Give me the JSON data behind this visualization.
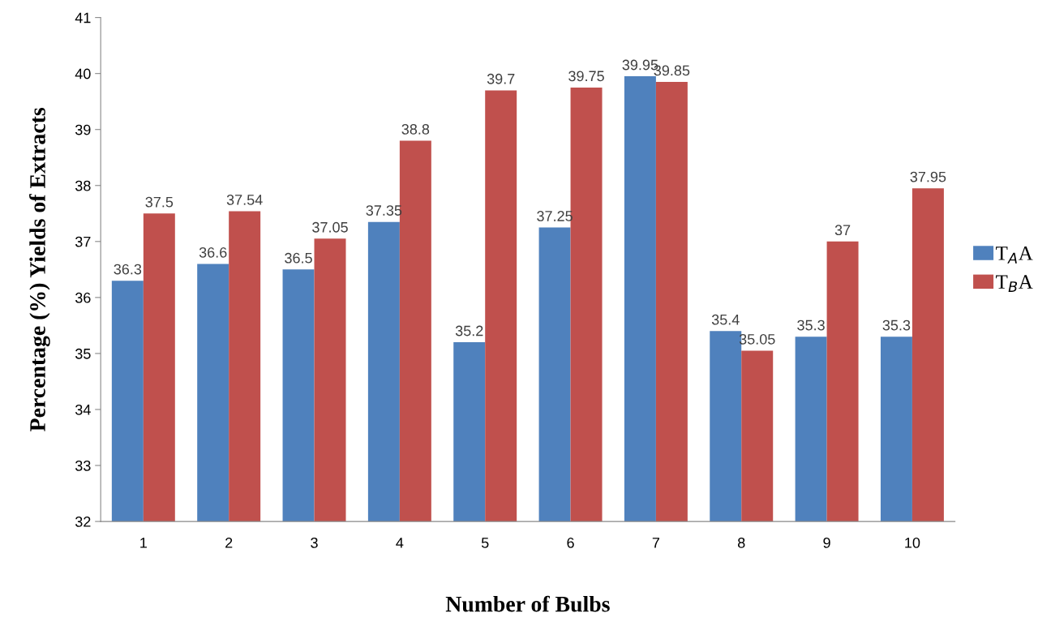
{
  "chart_data": {
    "type": "bar",
    "xlabel": "Number of Bulbs",
    "ylabel": "Percentage (%) Yields of Extracts",
    "categories": [
      "1",
      "2",
      "3",
      "4",
      "5",
      "6",
      "7",
      "8",
      "9",
      "10"
    ],
    "series": [
      {
        "name": "T$_{A}$A",
        "color": "#4f81bd",
        "values": [
          36.3,
          36.6,
          36.5,
          37.35,
          35.2,
          37.25,
          39.95,
          35.4,
          35.3,
          35.3
        ]
      },
      {
        "name": "T$_{B}$A",
        "color": "#c0504d",
        "values": [
          37.5,
          37.54,
          37.05,
          38.8,
          39.7,
          39.75,
          39.85,
          35.05,
          37,
          37.95
        ]
      }
    ],
    "ylim": [
      32,
      41
    ],
    "yticks": [
      32,
      33,
      34,
      35,
      36,
      37,
      38,
      39,
      40,
      41
    ],
    "data_labels": true,
    "legend": "right",
    "grid": false
  }
}
